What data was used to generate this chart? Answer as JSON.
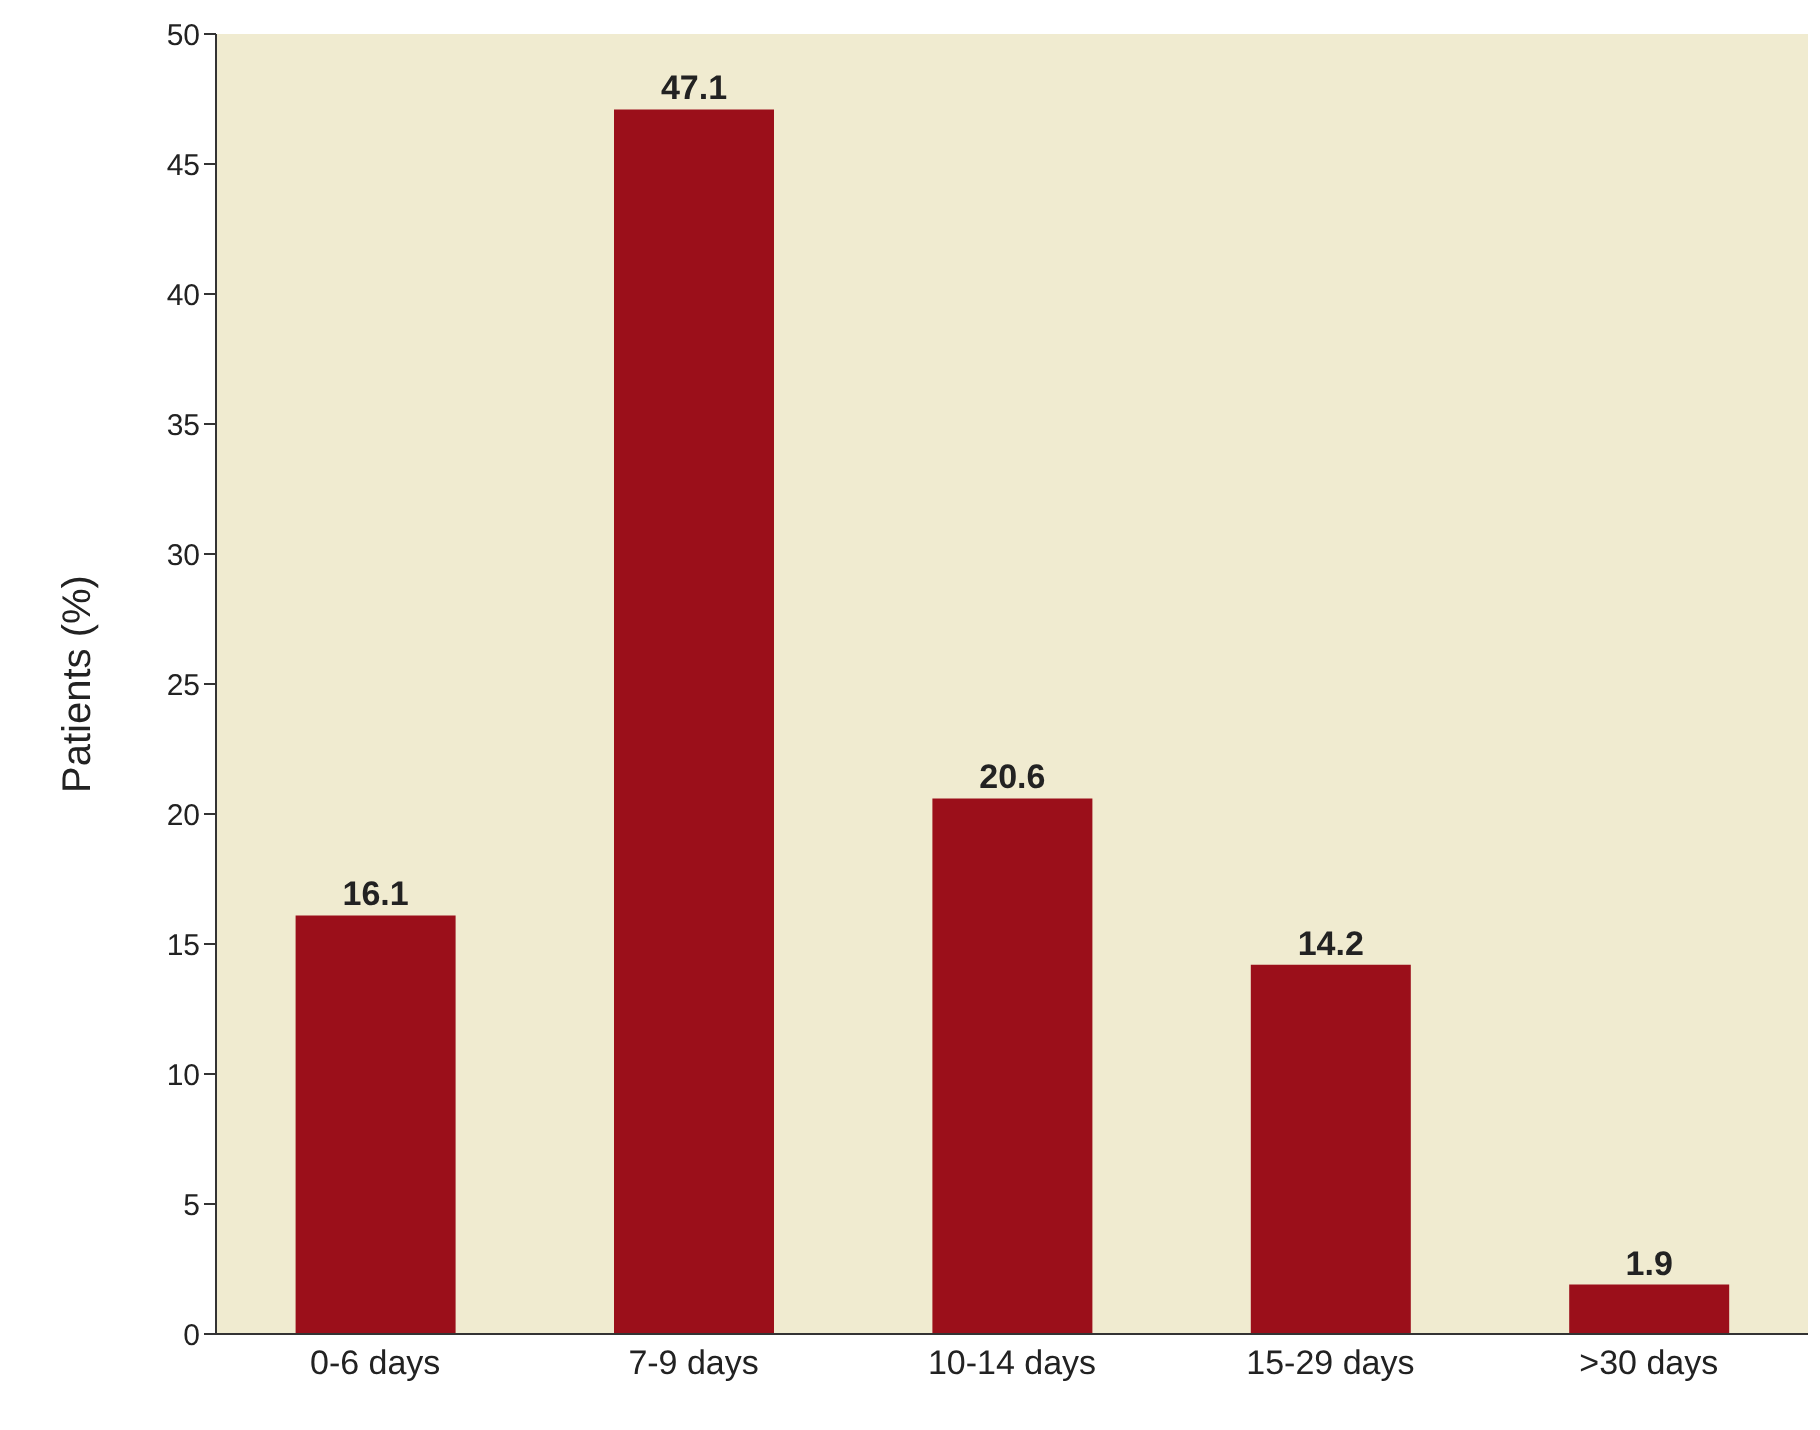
{
  "chart_data": {
    "type": "bar",
    "ylabel": "Patients (%)",
    "categories": [
      "0-6 days",
      "7-9 days",
      "10-14 days",
      "15-29 days",
      ">30 days"
    ],
    "values": [
      16.1,
      47.1,
      20.6,
      14.2,
      1.9
    ],
    "color": "#9b0f1a",
    "ylim": [
      0,
      50
    ],
    "yticks": [
      0,
      5,
      10,
      15,
      20,
      25,
      30,
      35,
      40,
      45,
      50
    ],
    "grid": false,
    "data_labels": true
  }
}
